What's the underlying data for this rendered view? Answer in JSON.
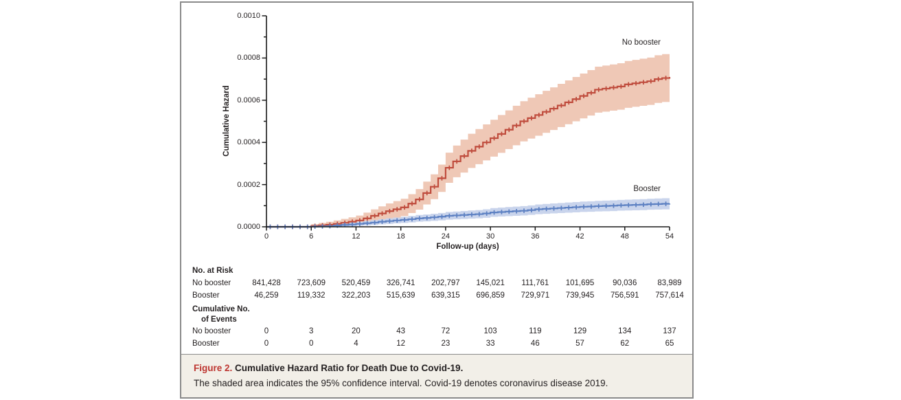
{
  "series_labels": {
    "no_booster": "No booster",
    "booster": "Booster"
  },
  "chart_data": {
    "type": "line",
    "title": "",
    "xlabel": "Follow-up (days)",
    "ylabel": "Cumulative Hazard",
    "xlim": [
      0,
      54
    ],
    "ylim": [
      0,
      0.001
    ],
    "x_ticks": [
      0,
      6,
      12,
      18,
      24,
      30,
      36,
      42,
      48,
      54
    ],
    "y_ticks": [
      "0.0000",
      "0.0002",
      "0.0004",
      "0.0006",
      "0.0008",
      "0.0010"
    ],
    "grid": false,
    "legend": "inline-labels",
    "ci_note": "shaded area = 95% confidence interval; curves are step functions with censoring tick marks",
    "y_unit": 1e-05,
    "x_days": [
      0,
      1,
      2,
      3,
      4,
      5,
      6,
      7,
      8,
      9,
      10,
      11,
      12,
      13,
      14,
      15,
      16,
      17,
      18,
      19,
      20,
      21,
      22,
      23,
      24,
      25,
      26,
      27,
      28,
      29,
      30,
      31,
      32,
      33,
      34,
      35,
      36,
      37,
      38,
      39,
      40,
      41,
      42,
      43,
      44,
      45,
      46,
      47,
      48,
      49,
      50,
      51,
      52,
      53,
      54
    ],
    "series": [
      {
        "name": "No booster",
        "color": "#bf4b3c",
        "band_color": "#efc8b6",
        "ci_coef": 1.35,
        "y": [
          0,
          0,
          0,
          0,
          0,
          0,
          0.4,
          0.7,
          1,
          1.4,
          1.9,
          2.4,
          3,
          4,
          5.2,
          6.3,
          7.4,
          8.3,
          9.2,
          11,
          13,
          16,
          19,
          23,
          28,
          31,
          33.5,
          36,
          38,
          40,
          42,
          44,
          46,
          48,
          50,
          51.5,
          53,
          54.5,
          56,
          57.5,
          59,
          60.5,
          62,
          63.5,
          65,
          65.5,
          66,
          66.5,
          67.5,
          68,
          68.5,
          69,
          70,
          70.5,
          71
        ]
      },
      {
        "name": "Booster",
        "color": "#5c80c2",
        "band_color": "#c9d4ec",
        "ci_coef": 0.8,
        "y": [
          0,
          0,
          0,
          0,
          0,
          0,
          0.1,
          0.2,
          0.3,
          0.6,
          0.9,
          1.1,
          1.4,
          1.7,
          2,
          2.4,
          2.7,
          3,
          3.3,
          3.6,
          4,
          4.2,
          4.5,
          4.8,
          5.2,
          5.4,
          5.6,
          5.8,
          6,
          6.3,
          6.8,
          7,
          7.2,
          7.4,
          7.6,
          7.9,
          8.3,
          8.5,
          8.7,
          8.9,
          9.1,
          9.3,
          9.5,
          9.6,
          9.8,
          9.9,
          10,
          10.2,
          10.3,
          10.4,
          10.5,
          10.7,
          10.8,
          10.9,
          11
        ]
      }
    ]
  },
  "risk_table": {
    "title": "No. at Risk",
    "days": [
      0,
      6,
      12,
      18,
      24,
      30,
      36,
      42,
      48,
      54
    ],
    "rows": [
      {
        "label": "No booster",
        "values": [
          "841,428",
          "723,609",
          "520,459",
          "326,741",
          "202,797",
          "145,021",
          "111,761",
          "101,695",
          "90,036",
          "83,989"
        ]
      },
      {
        "label": "Booster",
        "values": [
          "46,259",
          "119,332",
          "322,203",
          "515,639",
          "639,315",
          "696,859",
          "729,971",
          "739,945",
          "756,591",
          "757,614"
        ]
      }
    ]
  },
  "events_table": {
    "title_line1": "Cumulative No.",
    "title_line2": "of Events",
    "rows": [
      {
        "label": "No booster",
        "values": [
          "0",
          "3",
          "20",
          "43",
          "72",
          "103",
          "119",
          "129",
          "134",
          "137"
        ]
      },
      {
        "label": "Booster",
        "values": [
          "0",
          "0",
          "4",
          "12",
          "23",
          "33",
          "46",
          "57",
          "62",
          "65"
        ]
      }
    ]
  },
  "caption": {
    "label": "Figure 2.",
    "title": " Cumulative Hazard Ratio for Death Due to Covid-19.",
    "body": "The shaded area indicates the 95% confidence interval. Covid-19 denotes coronavirus disease 2019."
  },
  "colors": {
    "frame_border": "#8a8a8a",
    "axis": "#1a1a1a",
    "caption_bg": "#f2efe8",
    "caption_accent": "#bd3530"
  }
}
